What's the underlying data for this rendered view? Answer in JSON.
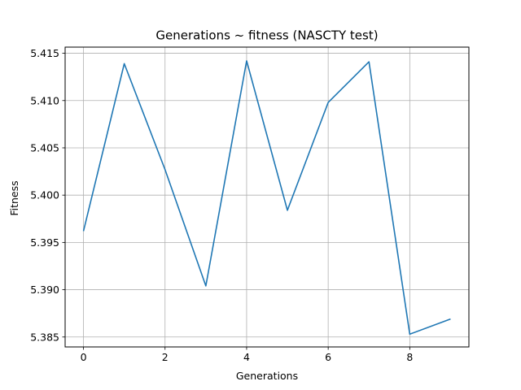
{
  "chart_data": {
    "type": "line",
    "title": "Generations ~ fitness (NASCTY test)",
    "xlabel": "Generations",
    "ylabel": "Fitness",
    "x": [
      0,
      1,
      2,
      3,
      4,
      5,
      6,
      7,
      8,
      9
    ],
    "series": [
      {
        "values": [
          5.3962,
          5.4139,
          5.4027,
          5.3904,
          5.4142,
          5.3984,
          5.4098,
          5.4141,
          5.3853,
          5.3869
        ],
        "color": "#1f77b4"
      }
    ],
    "xlim": [
      -0.45,
      9.45
    ],
    "ylim": [
      5.38395,
      5.41565
    ],
    "xticks": [
      0,
      2,
      4,
      6,
      8
    ],
    "xtick_labels": [
      "0",
      "2",
      "4",
      "6",
      "8"
    ],
    "yticks": [
      5.385,
      5.39,
      5.395,
      5.4,
      5.405,
      5.41,
      5.415
    ],
    "ytick_labels": [
      "5.385",
      "5.390",
      "5.395",
      "5.400",
      "5.405",
      "5.410",
      "5.415"
    ],
    "grid": true,
    "grid_color": "#b0b0b0",
    "legend": "none"
  }
}
